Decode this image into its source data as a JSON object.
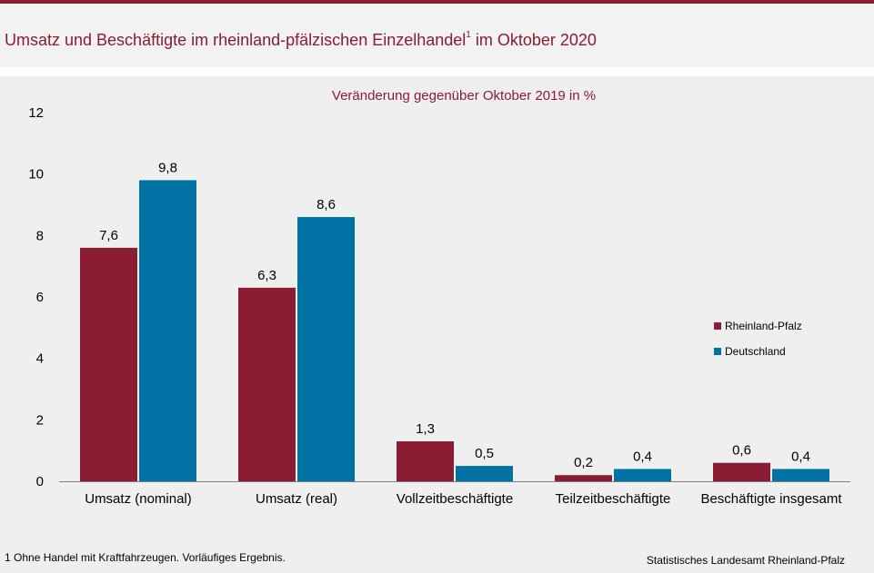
{
  "header": {
    "title_main": "Umsatz und Beschäftigte im rheinland-pfälzischen Einzelhandel",
    "title_sup": "1",
    "title_rest": " im Oktober 2020"
  },
  "footnote": "1 Ohne Handel mit Kraftfahrzeugen. Vorläufiges Ergebnis.",
  "source": "Statistisches Landesamt Rheinland-Pfalz",
  "colors": {
    "accent": "#8a1c33",
    "rp": "#8a1c33",
    "de": "#0072a3"
  },
  "chart_data": {
    "type": "bar",
    "title": "Veränderung gegenüber Oktober 2019 in %",
    "categories": [
      "Umsatz (nominal)",
      "Umsatz (real)",
      "Vollzeitbeschäftigte",
      "Teilzeitbeschäftigte",
      "Beschäftigte insgesamt"
    ],
    "series": [
      {
        "name": "Rheinland-Pfalz",
        "values": [
          7.6,
          6.3,
          1.3,
          0.2,
          0.6
        ],
        "labels": [
          "7,6",
          "6,3",
          "1,3",
          "0,2",
          "0,6"
        ]
      },
      {
        "name": "Deutschland",
        "values": [
          9.8,
          8.6,
          0.5,
          0.4,
          0.4
        ],
        "labels": [
          "9,8",
          "8,6",
          "0,5",
          "0,4",
          "0,4"
        ]
      }
    ],
    "ylim": [
      0,
      12
    ],
    "yticks": [
      0,
      2,
      4,
      6,
      8,
      10,
      12
    ],
    "grid": false,
    "legend_position": "right"
  }
}
